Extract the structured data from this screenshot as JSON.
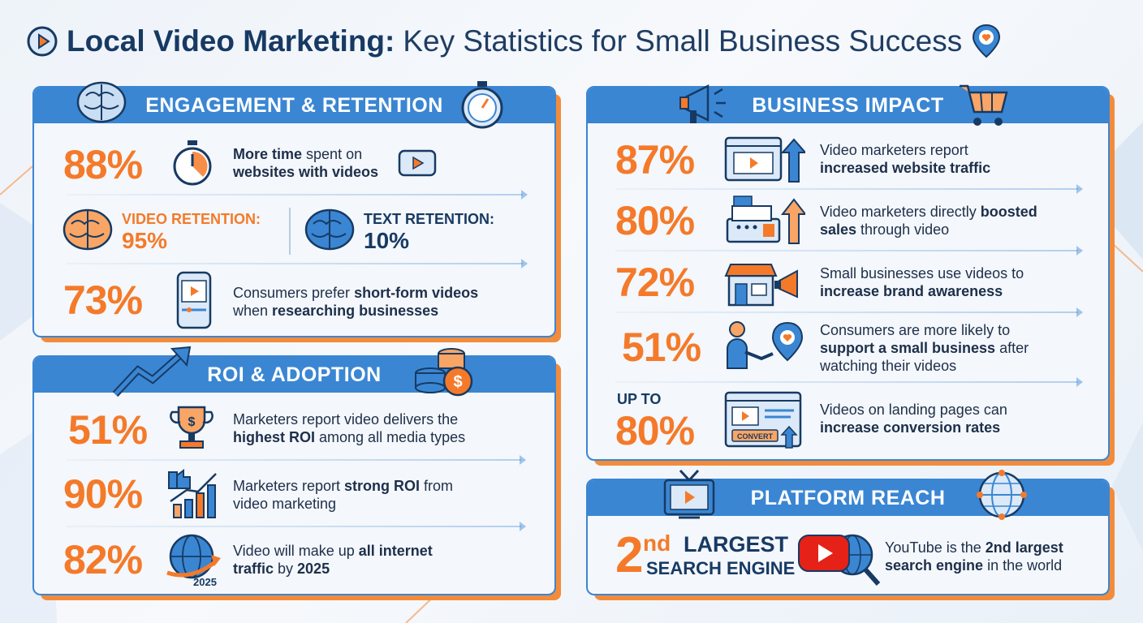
{
  "title": {
    "bold": "Local Video Marketing:",
    "rest": "Key Statistics for Small Business Success"
  },
  "engagement": {
    "heading": "ENGAGEMENT & RETENTION",
    "stat1": {
      "value": "88%",
      "t1": "More time",
      "t2": " spent on",
      "t3": "websites with videos"
    },
    "video_ret": {
      "label": "VIDEO RETENTION:",
      "value": "95%"
    },
    "text_ret": {
      "label": "TEXT RETENTION:",
      "value": "10%"
    },
    "stat3": {
      "value": "73%",
      "t1": "Consumers prefer ",
      "t2": "short-form videos",
      "t3": "when ",
      "t4": "researching businesses"
    }
  },
  "roi": {
    "heading": "ROI & ADOPTION",
    "stat1": {
      "value": "51%",
      "t1": "Marketers report video delivers the",
      "t2": "highest ROI",
      "t3": " among all media types"
    },
    "stat2": {
      "value": "90%",
      "t1": "Marketers report ",
      "t2": "strong ROI",
      "t3": " from",
      "t4": "video marketing"
    },
    "stat3": {
      "value": "82%",
      "t1": "Video will make up ",
      "t2": "all internet",
      "t3": "traffic",
      "t4": " by ",
      "t5": "2025",
      "badge": "2025"
    }
  },
  "business": {
    "heading": "BUSINESS IMPACT",
    "stat1": {
      "value": "87%",
      "t1": "Video marketers report",
      "t2": "increased website traffic"
    },
    "stat2": {
      "value": "80%",
      "t1": "Video marketers directly ",
      "t2": "boosted",
      "t3": "sales",
      "t4": " through video"
    },
    "stat3": {
      "value": "72%",
      "t1": "Small businesses use videos to",
      "t2": "increase brand awareness"
    },
    "stat4": {
      "value": "51%",
      "t1": "Consumers are more likely to",
      "t2": "support a small business",
      "t3": " after",
      "t4": "watching their videos"
    },
    "stat5": {
      "prefix": "UP TO",
      "value": "80%",
      "t1": "Videos on landing pages can",
      "t2": "increase conversion rates",
      "badge": "CONVERT"
    }
  },
  "platform": {
    "heading": "PLATFORM REACH",
    "big": "2",
    "sup": "nd",
    "large": "LARGEST",
    "engine": "SEARCH ENGINE",
    "t1": "YouTube is the ",
    "t2": "2nd largest",
    "t3": "search engine",
    "t4": " in the world"
  },
  "colors": {
    "accent_blue": "#3a86d3",
    "accent_orange": "#f47a2a",
    "navy": "#173a63"
  },
  "icons": [
    "play-circle-icon",
    "location-heart-icon",
    "brain-icon",
    "stopwatch-icon",
    "play-button-icon",
    "smartphone-video-icon",
    "trend-arrow-icon",
    "coins-icon",
    "trophy-icon",
    "thumbs-up-chart-icon",
    "globe-arrow-icon",
    "megaphone-icon",
    "cart-icon",
    "browser-video-icon",
    "cash-register-icon",
    "storefront-icon",
    "handshake-location-icon",
    "landing-page-icon",
    "tv-icon",
    "globe-network-icon",
    "youtube-icon"
  ]
}
